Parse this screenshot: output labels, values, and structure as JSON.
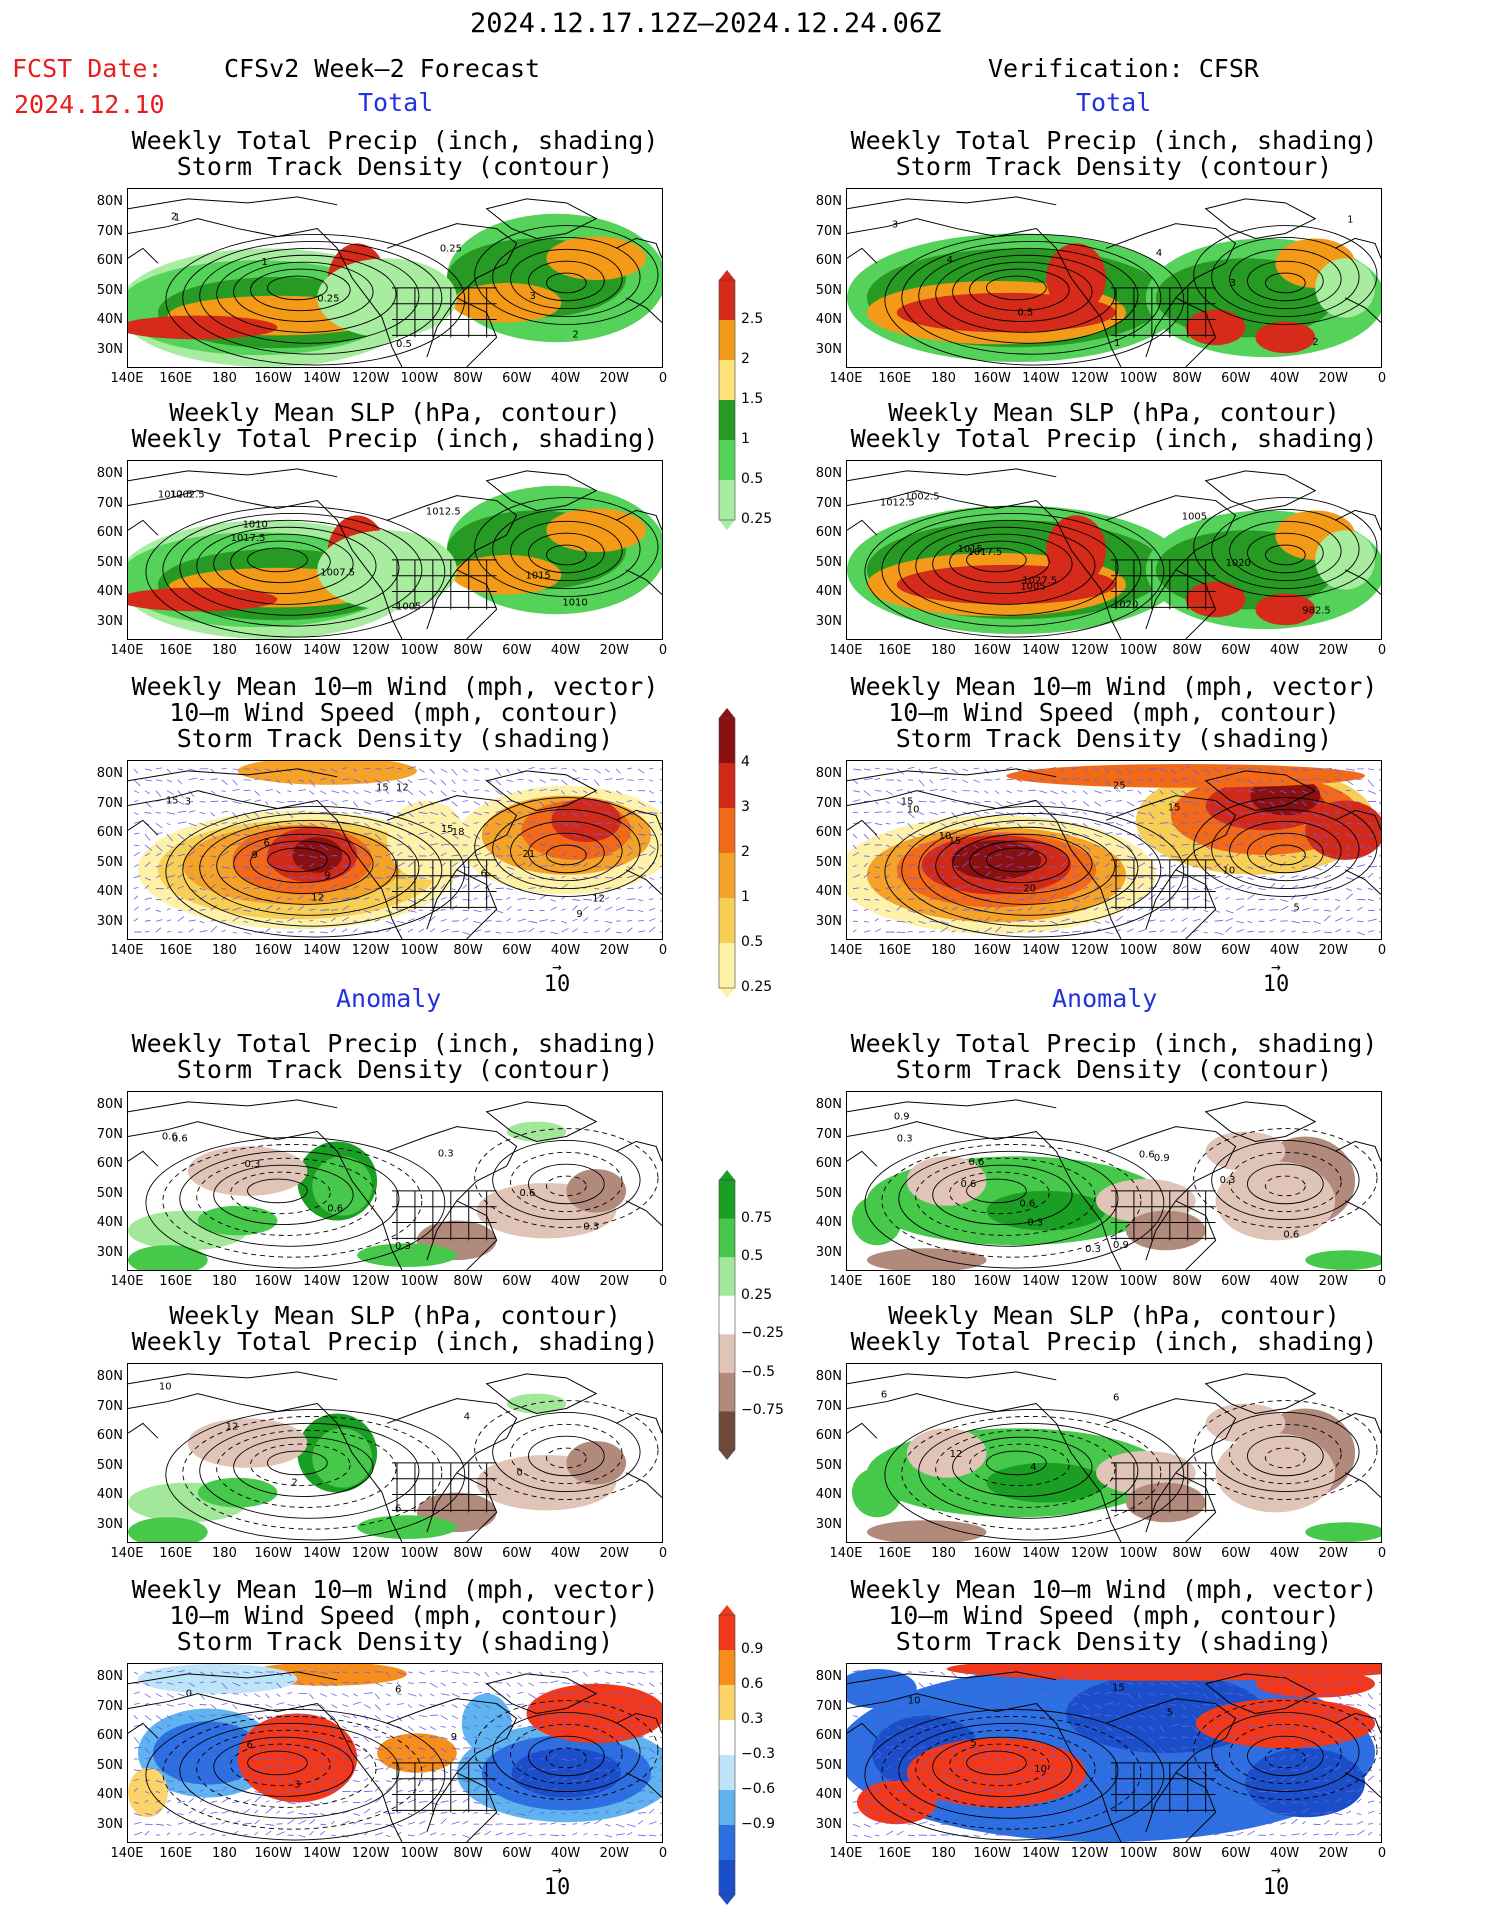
{
  "header": {
    "date_range": "2024.12.17.12Z–2024.12.24.06Z",
    "fcst_label": "FCST Date:",
    "fcst_date": "2024.12.10",
    "left_title": "CFSv2 Week–2 Forecast",
    "right_title": "Verification: CFSR",
    "total_label": "Total",
    "anomaly_label": "Anomaly"
  },
  "axes": {
    "lat_labels": [
      "80N",
      "70N",
      "60N",
      "50N",
      "40N",
      "30N"
    ],
    "lon_labels": [
      "140E",
      "160E",
      "180",
      "160W",
      "140W",
      "120W",
      "100W",
      "80W",
      "60W",
      "40W",
      "20W",
      "0"
    ]
  },
  "panel_titles": {
    "precip_storm": [
      "Weekly Total Precip (inch, shading)",
      "Storm Track Density (contour)"
    ],
    "slp_precip": [
      "Weekly Mean SLP (hPa, contour)",
      "Weekly Total Precip (inch, shading)"
    ],
    "wind_storm": [
      "Weekly Mean 10–m Wind (mph, vector)",
      "10–m Wind Speed (mph, contour)",
      "Storm Track Density (shading)"
    ]
  },
  "wind_reference": {
    "arrow": "→",
    "value": "10"
  },
  "colorbars": {
    "total_precip": {
      "labels": [
        "2.5",
        "2",
        "1.5",
        "1",
        "0.5",
        "0.25"
      ],
      "colors": [
        "#d62a1a",
        "#f39a19",
        "#fde27a",
        "#279a24",
        "#55d25a",
        "#a8eca0"
      ]
    },
    "total_storm": {
      "labels": [
        "4",
        "3",
        "2",
        "1",
        "0.5",
        "0.25"
      ],
      "colors": [
        "#8b1010",
        "#d22a18",
        "#f26a17",
        "#f5a228",
        "#f8cf55",
        "#fdf2a8"
      ]
    },
    "anom_precip": {
      "labels": [
        "0.75",
        "0.5",
        "0.25",
        "−0.25",
        "−0.5",
        "−0.75"
      ],
      "colors": [
        "#1b9e24",
        "#46c94b",
        "#a2e79a",
        "#ffffff",
        "#e0c4b8",
        "#b28a7c",
        "#6e4a3a"
      ]
    },
    "anom_storm": {
      "labels": [
        "0.9",
        "0.6",
        "0.3",
        "−0.3",
        "−0.6",
        "−0.9"
      ],
      "colors": [
        "#f2381a",
        "#f78e1b",
        "#fbd56a",
        "#ffffff",
        "#bde4f7",
        "#5fb3ee",
        "#2c6fe0",
        "#1a4fc9"
      ]
    }
  },
  "contour_labels": {
    "fc_precip": [
      "2",
      "1",
      "0.25",
      "0.5",
      "0.25",
      "3",
      "2",
      "1"
    ],
    "ob_precip": [
      "3",
      "4",
      "0.5",
      "1",
      "4",
      "3",
      "2",
      "1"
    ],
    "fc_slp": [
      "1012.5",
      "1010",
      "1007.5",
      "1005",
      "1012.5",
      "1015",
      "1010",
      "1002.5",
      "1017.5"
    ],
    "ob_slp": [
      "1012.5",
      "1017.5",
      "1005",
      "1020",
      "1005",
      "1020",
      "982.5",
      "1002.5",
      "1015",
      "1027.5"
    ],
    "fc_wind": [
      "3",
      "6",
      "9",
      "12",
      "18",
      "21",
      "12",
      "15",
      "9",
      "12",
      "15",
      "15",
      "6",
      "9"
    ],
    "ob_wind": [
      "10",
      "15",
      "20",
      "25",
      "15",
      "10",
      "5",
      "15",
      "10"
    ],
    "fc_anom_precip": [
      "0.6",
      "0.3",
      "0.6",
      "0.3",
      "0.3",
      "0.6",
      "0.3",
      "0.6"
    ],
    "ob_anom_precip": [
      "0.9",
      "0.6",
      "0.3",
      "0.9",
      "0.9",
      "0.3",
      "0.6",
      "0.3",
      "0.6",
      "0.6",
      "0.3",
      "0.6"
    ],
    "fc_anom_slp": [
      "10",
      "12",
      "2",
      "6",
      "4",
      "0"
    ],
    "ob_anom_slp": [
      "6",
      "12",
      "4",
      "6"
    ],
    "fc_anom_wind": [
      "0",
      "6",
      "3",
      "6",
      "9"
    ],
    "ob_anom_wind": [
      "10",
      "5",
      "10",
      "15",
      "5",
      "5"
    ]
  }
}
